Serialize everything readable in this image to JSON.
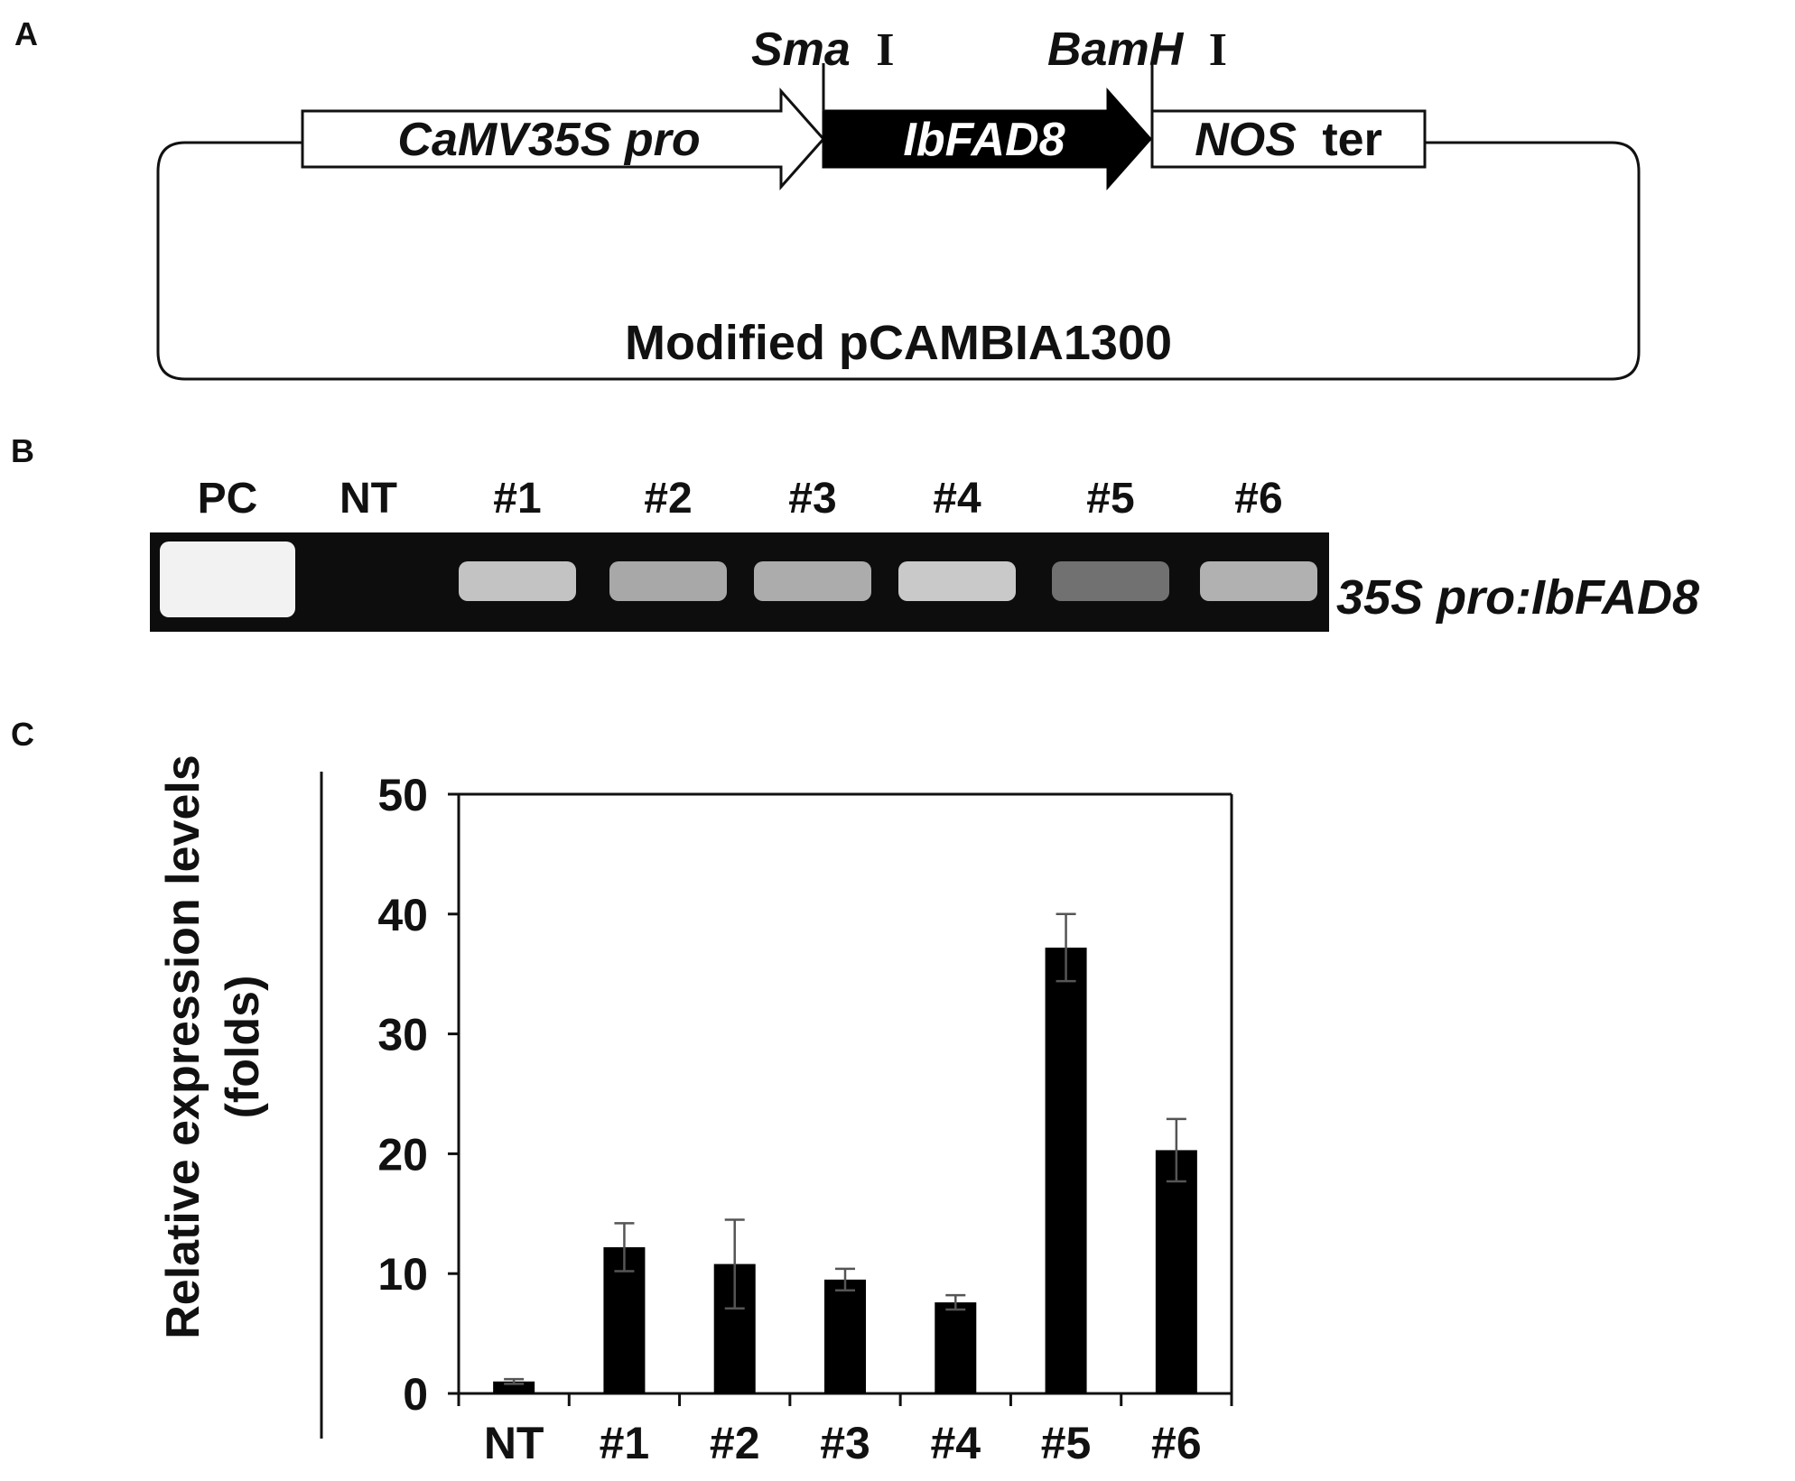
{
  "panel_a": {
    "letter": "A",
    "sites": {
      "left_name": "Sma",
      "left_suffix": "I",
      "right_name": "BamH",
      "right_suffix": "I"
    },
    "promoter": "CaMV35S pro",
    "gene": "IbFAD8",
    "terminator_italic": "NOS",
    "terminator_plain": "ter",
    "vector": "Modified pCAMBIA1300"
  },
  "panel_b": {
    "letter": "B",
    "lanes": [
      "PC",
      "NT",
      "#1",
      "#2",
      "#3",
      "#4",
      "#5",
      "#6"
    ],
    "band_intensity": [
      1.0,
      0.0,
      0.75,
      0.6,
      0.62,
      0.78,
      0.3,
      0.65
    ],
    "gel_label": "35S pro:IbFAD8"
  },
  "panel_c": {
    "letter": "C"
  },
  "chart_data": {
    "type": "bar",
    "categories": [
      "NT",
      "#1",
      "#2",
      "#3",
      "#4",
      "#5",
      "#6"
    ],
    "values": [
      1.0,
      12.2,
      10.8,
      9.5,
      7.6,
      37.2,
      20.3
    ],
    "errors": [
      0.2,
      2.0,
      3.7,
      0.9,
      0.6,
      2.8,
      2.6
    ],
    "title": "",
    "xlabel": "",
    "ylabel_line1": "Relative expression levels",
    "ylabel_line2": "(folds)",
    "ylim": [
      0,
      50
    ],
    "yticks": [
      0,
      10,
      20,
      30,
      40,
      50
    ],
    "grid": false,
    "bar_color": "#000000"
  }
}
